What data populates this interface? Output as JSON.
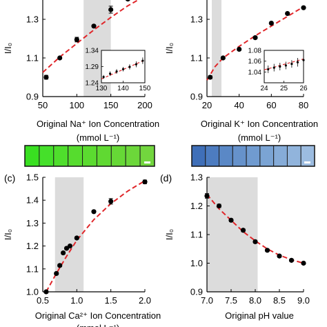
{
  "chart_data": [
    {
      "id": "a",
      "type": "scatter",
      "panel_label": "",
      "xlabel": "Original Na⁺ Ion Concentration",
      "xunit": "(mmol L⁻¹)",
      "ylabel": "I/I₀",
      "xlim": [
        50,
        200
      ],
      "ylim": [
        0.9,
        1.4
      ],
      "xticks": [
        50,
        100,
        150,
        200
      ],
      "yticks": [
        0.9,
        1.1,
        1.3
      ],
      "shaded_x": [
        110,
        150
      ],
      "points": [
        {
          "x": 55,
          "y": 1.0,
          "err": 0.01
        },
        {
          "x": 75,
          "y": 1.1,
          "err": 0.005
        },
        {
          "x": 100,
          "y": 1.195,
          "err": 0.012
        },
        {
          "x": 125,
          "y": 1.265,
          "err": 0.005
        },
        {
          "x": 150,
          "y": 1.35,
          "err": 0.018
        },
        {
          "x": 175,
          "y": 1.405,
          "err": 0.005
        }
      ],
      "fit": [
        [
          50,
          1.025
        ],
        [
          75,
          1.105
        ],
        [
          100,
          1.175
        ],
        [
          125,
          1.245
        ],
        [
          150,
          1.31
        ],
        [
          175,
          1.37
        ],
        [
          200,
          1.42
        ]
      ],
      "fit_color": "#e0262a",
      "inset": {
        "xlim": [
          130,
          150
        ],
        "ylim": [
          1.24,
          1.34
        ],
        "xticks": [
          130,
          140,
          150
        ],
        "yticks": [
          1.24,
          1.29,
          1.34
        ],
        "points": [
          {
            "x": 131,
            "y": 1.258,
            "err": 0.006
          },
          {
            "x": 134,
            "y": 1.268,
            "err": 0.007
          },
          {
            "x": 137,
            "y": 1.275,
            "err": 0.007
          },
          {
            "x": 140,
            "y": 1.282,
            "err": 0.007
          },
          {
            "x": 143,
            "y": 1.289,
            "err": 0.008
          },
          {
            "x": 146,
            "y": 1.297,
            "err": 0.009
          },
          {
            "x": 149,
            "y": 1.308,
            "err": 0.01
          }
        ],
        "fit": [
          [
            130,
            1.252
          ],
          [
            150,
            1.31
          ]
        ]
      },
      "colorbar": {
        "colors": [
          "#39e021",
          "#45e02a",
          "#4fde2c",
          "#56dc2e",
          "#5bdb30",
          "#60d932",
          "#66d836",
          "#6cd73a",
          "#72d63e"
        ]
      }
    },
    {
      "id": "b",
      "type": "scatter",
      "panel_label": "",
      "xlabel": "Original K⁺ Ion Concentration",
      "xunit": "(mmol L⁻¹)",
      "ylabel": "I/I₀",
      "xlim": [
        20,
        80
      ],
      "ylim": [
        0.9,
        1.4
      ],
      "xticks": [
        20,
        40,
        60,
        80
      ],
      "yticks": [
        0.9,
        1.1,
        1.3
      ],
      "shaded_x": [
        23,
        29
      ],
      "points": [
        {
          "x": 22,
          "y": 1.0,
          "err": 0.008
        },
        {
          "x": 30,
          "y": 1.1,
          "err": 0.005
        },
        {
          "x": 40,
          "y": 1.145,
          "err": 0.005
        },
        {
          "x": 50,
          "y": 1.205,
          "err": 0.005
        },
        {
          "x": 60,
          "y": 1.28,
          "err": 0.005
        },
        {
          "x": 70,
          "y": 1.33,
          "err": 0.005
        },
        {
          "x": 80,
          "y": 1.36,
          "err": 0.005
        }
      ],
      "fit": [
        [
          20,
          0.985
        ],
        [
          25,
          1.055
        ],
        [
          30,
          1.1
        ],
        [
          40,
          1.16
        ],
        [
          50,
          1.215
        ],
        [
          60,
          1.265
        ],
        [
          70,
          1.315
        ],
        [
          80,
          1.365
        ]
      ],
      "fit_color": "#e0262a",
      "inset": {
        "xlim": [
          24,
          26
        ],
        "ylim": [
          1.02,
          1.08
        ],
        "xticks": [
          24,
          25,
          26
        ],
        "yticks": [
          1.04,
          1.06,
          1.08
        ],
        "points": [
          {
            "x": 24.2,
            "y": 1.045,
            "err": 0.007
          },
          {
            "x": 24.5,
            "y": 1.048,
            "err": 0.007
          },
          {
            "x": 24.8,
            "y": 1.05,
            "err": 0.007
          },
          {
            "x": 25.1,
            "y": 1.052,
            "err": 0.007
          },
          {
            "x": 25.4,
            "y": 1.055,
            "err": 0.007
          },
          {
            "x": 25.7,
            "y": 1.058,
            "err": 0.008
          },
          {
            "x": 26.0,
            "y": 1.062,
            "err": 0.009
          }
        ],
        "fit": [
          [
            24,
            1.044
          ],
          [
            26,
            1.064
          ]
        ]
      },
      "colorbar": {
        "colors": [
          "#3f6fb8",
          "#4d7cc0",
          "#5a88c6",
          "#6692cb",
          "#709bd0",
          "#7ba4d4",
          "#86acd8",
          "#91b4dc",
          "#9cbce0"
        ]
      }
    },
    {
      "id": "c",
      "type": "scatter",
      "panel_label": "(c)",
      "xlabel": "Original Ca²⁺ Ion Concentration",
      "xunit": "(mmol L⁻¹)",
      "ylabel": "I/I₀",
      "xlim": [
        0.5,
        2.0
      ],
      "ylim": [
        1.0,
        1.5
      ],
      "xticks": [
        0.5,
        1.0,
        1.5,
        2.0
      ],
      "yticks": [
        1.0,
        1.1,
        1.2,
        1.3,
        1.4,
        1.5
      ],
      "shaded_x": [
        0.68,
        1.1
      ],
      "points": [
        {
          "x": 0.55,
          "y": 1.0,
          "err": 0.006
        },
        {
          "x": 0.7,
          "y": 1.08,
          "err": 0.005
        },
        {
          "x": 0.75,
          "y": 1.115,
          "err": 0.005
        },
        {
          "x": 0.8,
          "y": 1.17,
          "err": 0.005
        },
        {
          "x": 0.85,
          "y": 1.19,
          "err": 0.005
        },
        {
          "x": 0.9,
          "y": 1.2,
          "err": 0.005
        },
        {
          "x": 1.0,
          "y": 1.235,
          "err": 0.005
        },
        {
          "x": 1.25,
          "y": 1.35,
          "err": 0.005
        },
        {
          "x": 1.5,
          "y": 1.395,
          "err": 0.012
        },
        {
          "x": 2.0,
          "y": 1.48,
          "err": 0.008
        }
      ],
      "fit": [
        [
          0.55,
          1.0
        ],
        [
          0.7,
          1.08
        ],
        [
          0.85,
          1.155
        ],
        [
          1.0,
          1.225
        ],
        [
          1.25,
          1.315
        ],
        [
          1.5,
          1.385
        ],
        [
          1.75,
          1.44
        ],
        [
          2.0,
          1.485
        ]
      ],
      "fit_color": "#e0262a"
    },
    {
      "id": "d",
      "type": "scatter",
      "panel_label": "(d)",
      "xlabel": "Original pH value",
      "xunit": "",
      "ylabel": "I/I₀",
      "xlim": [
        7.0,
        9.0
      ],
      "ylim": [
        0.9,
        1.3
      ],
      "xticks": [
        7.0,
        7.5,
        8.0,
        8.5,
        9.0
      ],
      "yticks": [
        0.9,
        1.0,
        1.1,
        1.2,
        1.3
      ],
      "shaded_x": [
        7.0,
        8.05
      ],
      "points": [
        {
          "x": 7.0,
          "y": 1.235,
          "err": 0.008
        },
        {
          "x": 7.25,
          "y": 1.2,
          "err": 0.006
        },
        {
          "x": 7.5,
          "y": 1.15,
          "err": 0.005
        },
        {
          "x": 7.75,
          "y": 1.115,
          "err": 0.005
        },
        {
          "x": 8.0,
          "y": 1.075,
          "err": 0.005
        },
        {
          "x": 8.25,
          "y": 1.045,
          "err": 0.004
        },
        {
          "x": 8.5,
          "y": 1.025,
          "err": 0.004
        },
        {
          "x": 8.75,
          "y": 1.01,
          "err": 0.004
        },
        {
          "x": 9.0,
          "y": 1.0,
          "err": 0.004
        }
      ],
      "fit": [
        [
          7.0,
          1.24
        ],
        [
          7.25,
          1.19
        ],
        [
          7.5,
          1.15
        ],
        [
          7.75,
          1.11
        ],
        [
          8.0,
          1.078
        ],
        [
          8.25,
          1.05
        ],
        [
          8.5,
          1.028
        ],
        [
          8.75,
          1.012
        ],
        [
          9.0,
          1.0
        ]
      ],
      "fit_color": "#e0262a"
    }
  ]
}
